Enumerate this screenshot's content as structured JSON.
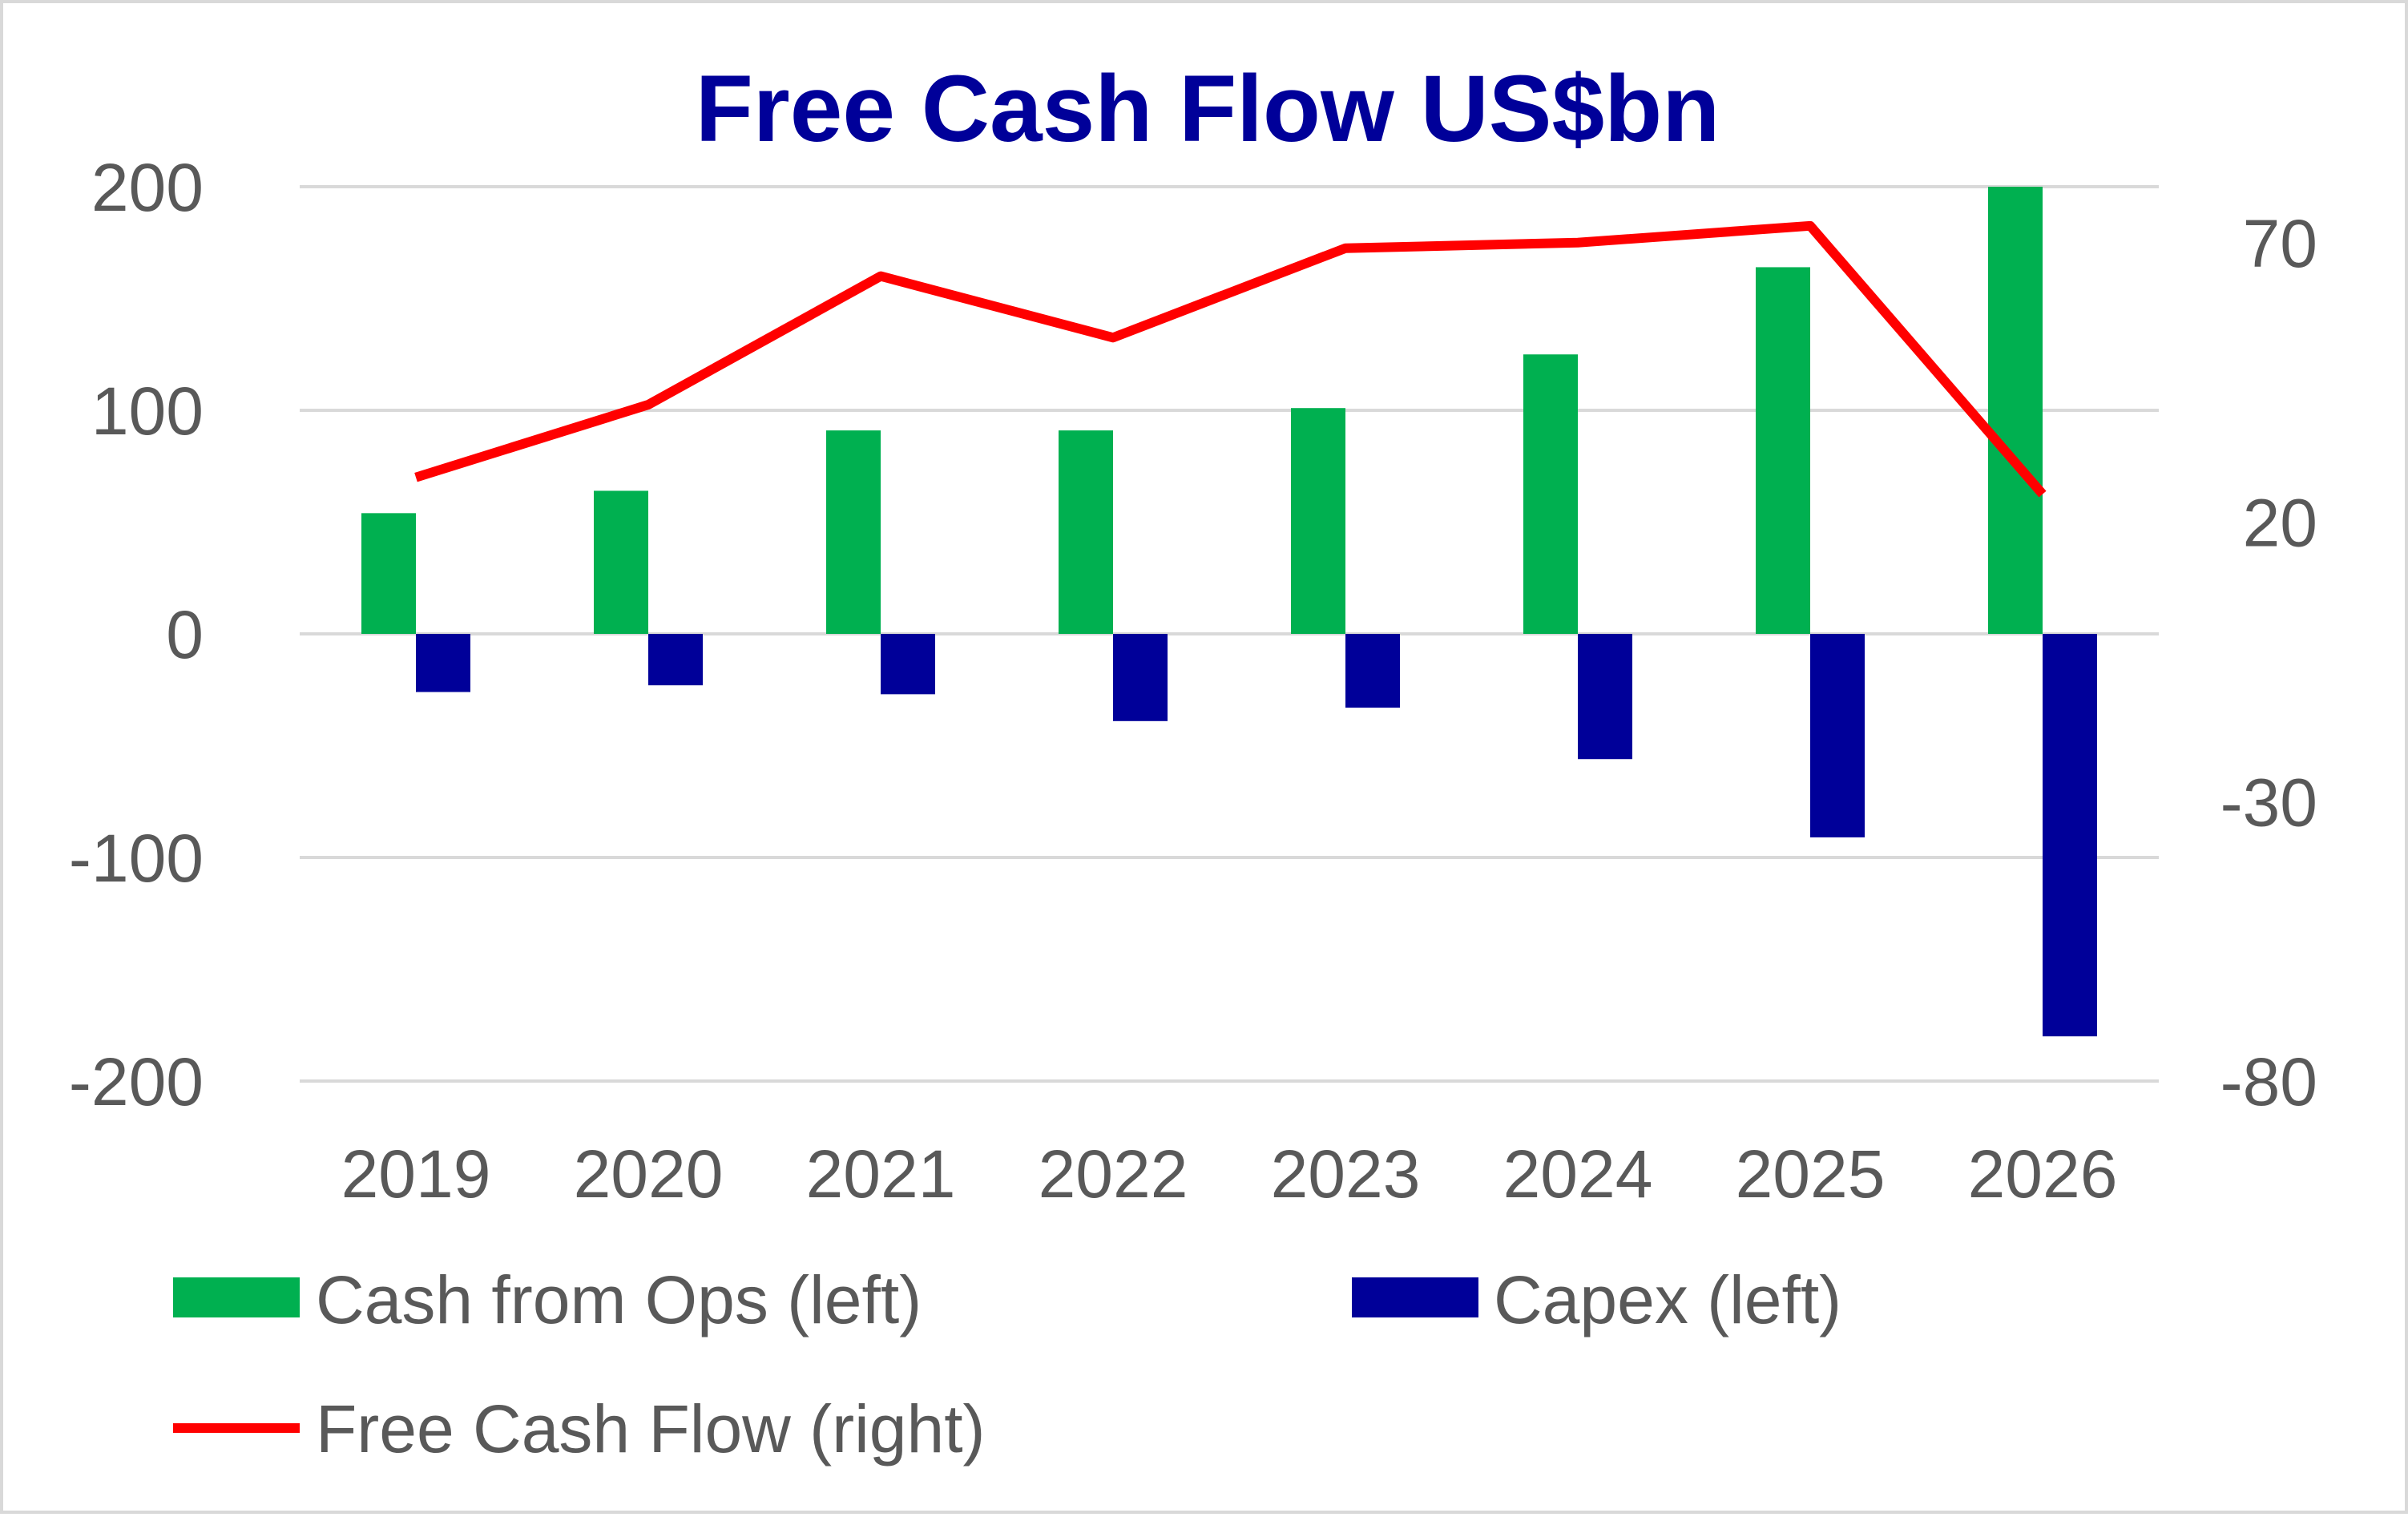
{
  "chart_data": {
    "type": "bar",
    "title": "Free Cash Flow US$bn",
    "categories": [
      "2019",
      "2020",
      "2021",
      "2022",
      "2023",
      "2024",
      "2025",
      "2026"
    ],
    "series": [
      {
        "name": "Cash from Ops (left)",
        "type": "bar",
        "axis": "left",
        "color": "#00b050",
        "values": [
          54,
          64,
          91,
          91,
          101,
          125,
          164,
          200
        ]
      },
      {
        "name": "Capex  (left)",
        "type": "bar",
        "axis": "left",
        "color": "#000099",
        "values": [
          -26,
          -23,
          -27,
          -39,
          -33,
          -56,
          -91,
          -180
        ]
      },
      {
        "name": "Free Cash Flow (right)",
        "type": "line",
        "axis": "right",
        "color": "#ff0000",
        "values": [
          28,
          41,
          64,
          53,
          69,
          70,
          73,
          25
        ]
      }
    ],
    "y_left": {
      "ylim": [
        -200,
        200
      ],
      "ticks": [
        "200",
        "100",
        "0",
        "-100",
        "-200"
      ],
      "tick_values": [
        200,
        100,
        0,
        -100,
        -200
      ]
    },
    "y_right": {
      "ylim": [
        -80,
        80
      ],
      "ticks": [
        "70",
        "20",
        "-30",
        "-80"
      ],
      "tick_values": [
        70,
        20,
        -30,
        -80
      ]
    },
    "grid": true,
    "legend_position": "bottom"
  }
}
